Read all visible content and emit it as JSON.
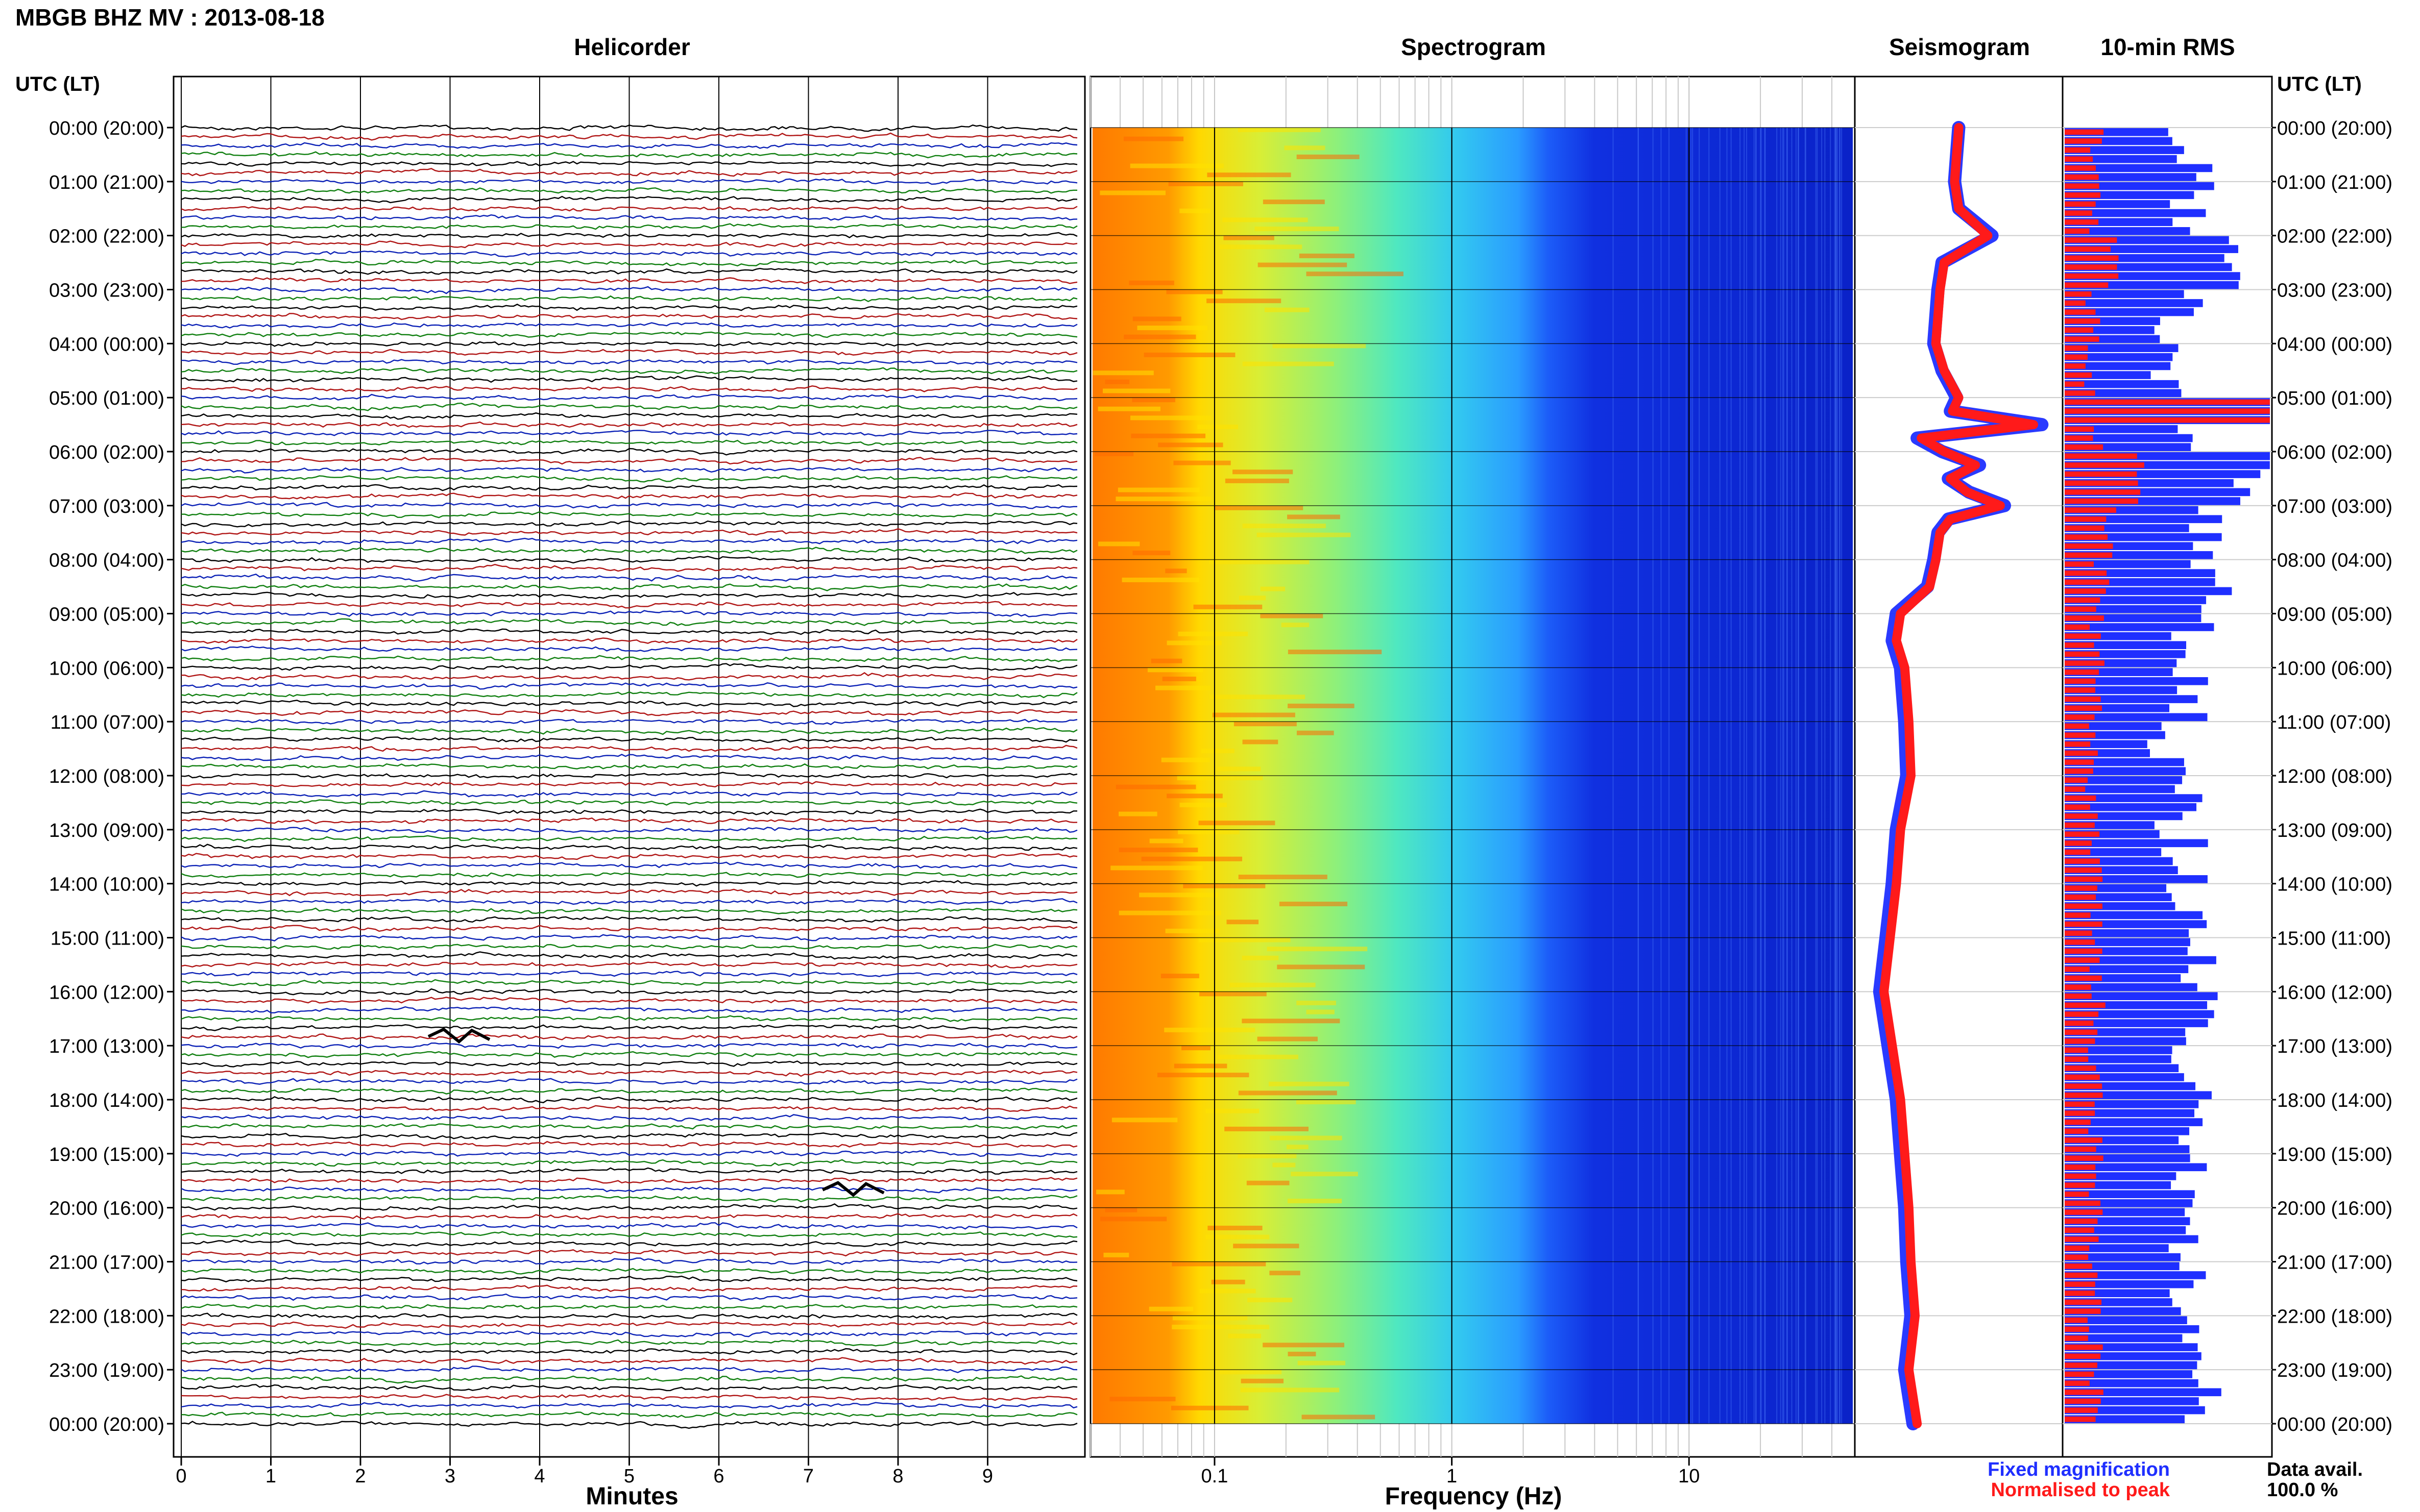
{
  "header": {
    "title": "MBGB BHZ MV : 2013-08-18"
  },
  "panels": {
    "helicorder": "Helicorder",
    "spectrogram": "Spectrogram",
    "seismogram": "Seismogram",
    "rms": "10-min RMS"
  },
  "axes": {
    "left_time_label": "UTC (LT)",
    "right_time_label": "UTC (LT)",
    "minutes_label": "Minutes",
    "frequency_label": "Frequency (Hz)"
  },
  "time_ticks": [
    "00:00 (20:00)",
    "01:00 (21:00)",
    "02:00 (22:00)",
    "03:00 (23:00)",
    "04:00 (00:00)",
    "05:00 (01:00)",
    "06:00 (02:00)",
    "07:00 (03:00)",
    "08:00 (04:00)",
    "09:00 (05:00)",
    "10:00 (06:00)",
    "11:00 (07:00)",
    "12:00 (08:00)",
    "13:00 (09:00)",
    "14:00 (10:00)",
    "15:00 (11:00)",
    "16:00 (12:00)",
    "17:00 (13:00)",
    "18:00 (14:00)",
    "19:00 (15:00)",
    "20:00 (16:00)",
    "21:00 (17:00)",
    "22:00 (18:00)",
    "23:00 (19:00)",
    "00:00 (20:00)"
  ],
  "minute_ticks": [
    "0",
    "1",
    "2",
    "3",
    "4",
    "5",
    "6",
    "7",
    "8",
    "9"
  ],
  "frequency_ticks": [
    "0.1",
    "1",
    "10"
  ],
  "legend": {
    "fixed": "Fixed magnification",
    "normalised": "Normalised to peak",
    "fixed_color": "#1f2fff",
    "normalised_color": "#ff1a1a"
  },
  "availability": {
    "label": "Data avail.",
    "value": "100.0 %"
  },
  "colors": {
    "trace_cycle": [
      "#000000",
      "#b01515",
      "#0b21b6",
      "#0f7f0f"
    ]
  },
  "chart_data": [
    {
      "type": "line",
      "title": "Helicorder",
      "xlabel": "Minutes",
      "xlim": [
        0,
        10
      ],
      "ylim_hours": [
        0,
        24
      ],
      "lines_per_hour": 6,
      "series_colors": [
        "black",
        "red",
        "blue",
        "green"
      ],
      "events": [
        {
          "hour": 16.83,
          "minute": 3.1
        },
        {
          "hour": 19.67,
          "minute": 7.5
        }
      ]
    },
    {
      "type": "heatmap",
      "title": "Spectrogram",
      "xlabel": "Frequency (Hz)",
      "x_scale": "log",
      "xlim": [
        0.03,
        50
      ],
      "ylim_hours": [
        0,
        24
      ]
    },
    {
      "type": "line",
      "title": "Seismogram",
      "y_hours": [
        0,
        0.5,
        1,
        1.5,
        2,
        2.5,
        3,
        3.5,
        4,
        4.5,
        5,
        5.25,
        5.5,
        5.75,
        6,
        6.25,
        6.5,
        6.75,
        7,
        7.25,
        7.5,
        8,
        8.5,
        9,
        9.5,
        10,
        11,
        12,
        13,
        14,
        15,
        16,
        17,
        18,
        19,
        20,
        21,
        22,
        23,
        24
      ],
      "series": [
        {
          "name": "Fixed magnification",
          "values": [
            0.5,
            0.49,
            0.48,
            0.5,
            0.66,
            0.42,
            0.4,
            0.39,
            0.38,
            0.42,
            0.49,
            0.46,
            0.9,
            0.3,
            0.42,
            0.6,
            0.45,
            0.55,
            0.72,
            0.45,
            0.4,
            0.38,
            0.35,
            0.2,
            0.18,
            0.22,
            0.24,
            0.25,
            0.2,
            0.18,
            0.15,
            0.12,
            0.16,
            0.2,
            0.22,
            0.24,
            0.25,
            0.27,
            0.24,
            0.28
          ]
        },
        {
          "name": "Normalised to peak",
          "values": [
            0.5,
            0.49,
            0.48,
            0.5,
            0.64,
            0.43,
            0.41,
            0.4,
            0.39,
            0.43,
            0.5,
            0.47,
            0.86,
            0.32,
            0.43,
            0.58,
            0.46,
            0.54,
            0.7,
            0.46,
            0.41,
            0.39,
            0.36,
            0.22,
            0.2,
            0.24,
            0.26,
            0.27,
            0.22,
            0.2,
            0.17,
            0.14,
            0.18,
            0.22,
            0.24,
            0.26,
            0.27,
            0.29,
            0.26,
            0.3
          ]
        }
      ]
    },
    {
      "type": "bar",
      "title": "10-min RMS",
      "bins_per_hour": 6,
      "hours": 24,
      "fixed_hourly_level": [
        0.6,
        0.62,
        0.8,
        0.55,
        0.5,
        0.6,
        0.9,
        0.68,
        0.7,
        0.62,
        0.58,
        0.52,
        0.55,
        0.58,
        0.6,
        0.65,
        0.64,
        0.62,
        0.6,
        0.58,
        0.6,
        0.62,
        0.6,
        0.66
      ],
      "normalised_hourly_level": [
        0.15,
        0.16,
        0.24,
        0.14,
        0.13,
        0.16,
        0.38,
        0.22,
        0.18,
        0.16,
        0.15,
        0.13,
        0.14,
        0.15,
        0.15,
        0.16,
        0.16,
        0.15,
        0.15,
        0.15,
        0.15,
        0.16,
        0.15,
        0.16
      ],
      "spike_hour": 5.17
    }
  ]
}
